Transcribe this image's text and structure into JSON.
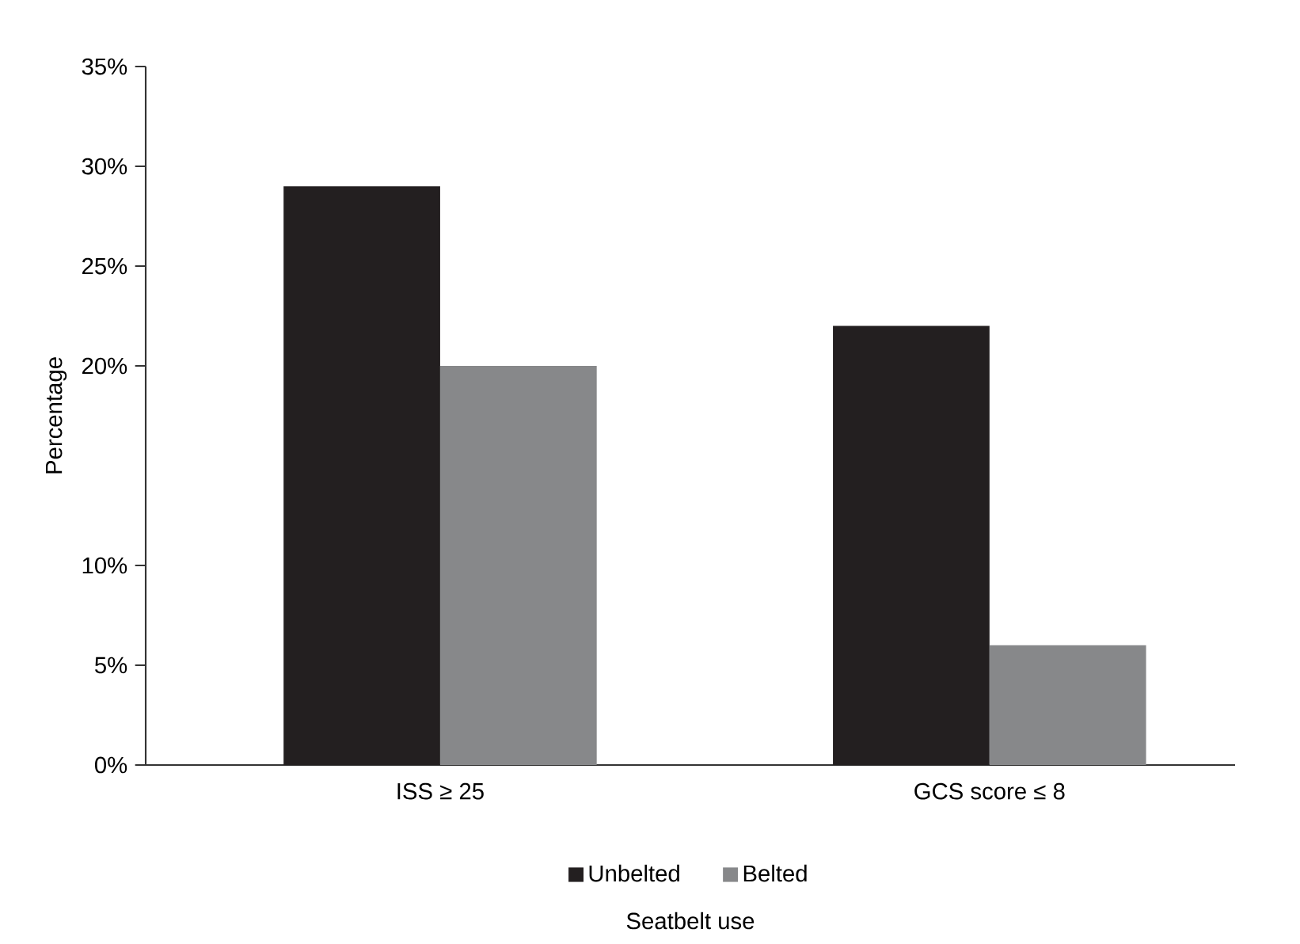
{
  "chart_data": {
    "type": "bar",
    "xlabel": "Seatbelt use",
    "ylabel": "Percentage",
    "categories": [
      "ISS ≥ 25",
      "GCS score ≤ 8"
    ],
    "series": [
      {
        "name": "Unbelted",
        "color": "#231f20",
        "values": [
          29,
          22
        ]
      },
      {
        "name": "Belted",
        "color": "#87888a",
        "values": [
          20,
          6
        ]
      }
    ],
    "ylim": [
      0,
      35
    ],
    "yticks": [
      {
        "value": 0,
        "label": "0%"
      },
      {
        "value": 5,
        "label": "5%"
      },
      {
        "value": 10,
        "label": "10%"
      },
      {
        "value": 20,
        "label": "20%"
      },
      {
        "value": 25,
        "label": "25%"
      },
      {
        "value": 30,
        "label": "30%"
      },
      {
        "value": 35,
        "label": "35%"
      }
    ],
    "grid": false,
    "legend": "bottom"
  }
}
